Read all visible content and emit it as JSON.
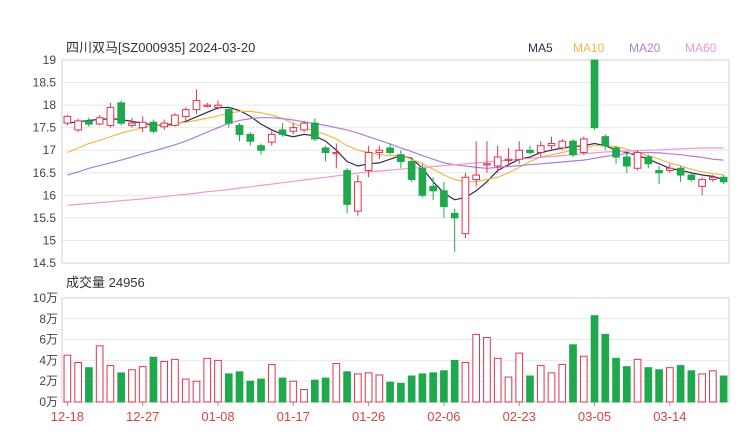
{
  "chart_data": [
    {
      "type": "candlestick",
      "title": "四川双马[SZ000935] 2024-03-20",
      "ylim": [
        14.5,
        19
      ],
      "y_ticks": [
        "19",
        "18.5",
        "18",
        "17.5",
        "17",
        "16.5",
        "16",
        "15.5",
        "15",
        "14.5"
      ],
      "legend": [
        {
          "name": "MA5",
          "color": "#2e2a4d"
        },
        {
          "name": "MA10",
          "color": "#f2b64e"
        },
        {
          "name": "MA20",
          "color": "#b07ed8"
        },
        {
          "name": "MA60",
          "color": "#ee9ad0"
        }
      ],
      "candles": [
        [
          17.6,
          17.75,
          17.55,
          17.78
        ],
        [
          17.45,
          17.65,
          17.4,
          17.7
        ],
        [
          17.65,
          17.58,
          17.52,
          17.72
        ],
        [
          17.58,
          17.72,
          17.55,
          17.78
        ],
        [
          17.55,
          17.95,
          17.5,
          18.05
        ],
        [
          18.05,
          17.6,
          17.55,
          18.1
        ],
        [
          17.55,
          17.6,
          17.5,
          17.72
        ],
        [
          17.5,
          17.62,
          17.4,
          17.75
        ],
        [
          17.62,
          17.42,
          17.38,
          17.68
        ],
        [
          17.52,
          17.6,
          17.45,
          17.68
        ],
        [
          17.55,
          17.78,
          17.52,
          17.82
        ],
        [
          17.75,
          17.9,
          17.65,
          17.95
        ],
        [
          17.9,
          18.1,
          17.8,
          18.35
        ],
        [
          18.0,
          18.0,
          17.95,
          18.05
        ],
        [
          17.95,
          18.0,
          17.9,
          18.1
        ],
        [
          17.9,
          17.6,
          17.5,
          17.95
        ],
        [
          17.55,
          17.35,
          17.2,
          17.6
        ],
        [
          17.35,
          17.2,
          17.1,
          17.4
        ],
        [
          17.1,
          17.0,
          16.9,
          17.15
        ],
        [
          17.18,
          17.35,
          17.1,
          17.45
        ],
        [
          17.45,
          17.35,
          17.3,
          17.6
        ],
        [
          17.42,
          17.5,
          17.35,
          17.6
        ],
        [
          17.45,
          17.6,
          17.4,
          17.65
        ],
        [
          17.6,
          17.25,
          17.2,
          17.7
        ],
        [
          17.05,
          16.95,
          16.75,
          17.1
        ],
        [
          16.95,
          16.95,
          16.6,
          17.15
        ],
        [
          16.55,
          15.8,
          15.6,
          16.6
        ],
        [
          15.65,
          16.3,
          15.55,
          16.45
        ],
        [
          16.55,
          16.95,
          16.4,
          17.1
        ],
        [
          16.95,
          17.0,
          16.8,
          17.1
        ],
        [
          17.05,
          16.95,
          16.9,
          17.15
        ],
        [
          16.9,
          16.75,
          16.6,
          17.0
        ],
        [
          16.75,
          16.35,
          16.3,
          16.85
        ],
        [
          16.6,
          16.0,
          15.95,
          16.7
        ],
        [
          16.2,
          16.1,
          15.9,
          16.4
        ],
        [
          16.1,
          15.75,
          15.5,
          16.3
        ],
        [
          15.6,
          15.5,
          14.75,
          15.7
        ],
        [
          15.15,
          16.4,
          15.05,
          16.5
        ],
        [
          16.35,
          16.45,
          16.2,
          17.2
        ],
        [
          16.7,
          16.7,
          16.5,
          17.2
        ],
        [
          16.65,
          16.85,
          16.5,
          17.1
        ],
        [
          16.8,
          16.8,
          16.65,
          17.05
        ],
        [
          16.8,
          17.0,
          16.7,
          17.2
        ],
        [
          17.0,
          16.95,
          16.9,
          17.1
        ],
        [
          16.95,
          17.1,
          16.85,
          17.2
        ],
        [
          17.1,
          17.15,
          17.0,
          17.3
        ],
        [
          17.05,
          17.2,
          17.0,
          17.25
        ],
        [
          17.2,
          16.9,
          16.85,
          17.25
        ],
        [
          16.95,
          17.25,
          16.9,
          17.3
        ],
        [
          19.0,
          17.5,
          17.45,
          19.0
        ],
        [
          17.3,
          17.1,
          17.0,
          17.35
        ],
        [
          17.05,
          16.85,
          16.7,
          17.1
        ],
        [
          16.85,
          16.65,
          16.5,
          16.95
        ],
        [
          16.6,
          16.95,
          16.55,
          17.0
        ],
        [
          16.85,
          16.7,
          16.6,
          16.9
        ],
        [
          16.55,
          16.5,
          16.25,
          16.65
        ],
        [
          16.55,
          16.6,
          16.5,
          16.7
        ],
        [
          16.6,
          16.45,
          16.3,
          16.65
        ],
        [
          16.45,
          16.35,
          16.3,
          16.5
        ],
        [
          16.2,
          16.35,
          16.0,
          16.4
        ],
        [
          16.35,
          16.4,
          16.3,
          16.45
        ],
        [
          16.4,
          16.3,
          16.25,
          16.45
        ]
      ],
      "ma": {
        "MA5": [
          17.6,
          17.63,
          17.66,
          17.68,
          17.7,
          17.68,
          17.64,
          17.6,
          17.56,
          17.55,
          17.58,
          17.64,
          17.74,
          17.84,
          17.94,
          17.95,
          17.88,
          17.75,
          17.58,
          17.45,
          17.35,
          17.3,
          17.35,
          17.32,
          17.2,
          17.0,
          16.75,
          16.65,
          16.7,
          16.72,
          16.8,
          16.88,
          16.82,
          16.6,
          16.3,
          16.05,
          15.9,
          15.95,
          16.1,
          16.3,
          16.55,
          16.68,
          16.8,
          16.85,
          16.95,
          17.0,
          17.05,
          17.08,
          17.1,
          17.15,
          17.1,
          17.0,
          16.95,
          16.88,
          16.8,
          16.7,
          16.6,
          16.55,
          16.5,
          16.45,
          16.42,
          16.35
        ],
        "MA10": [
          16.95,
          17.05,
          17.15,
          17.22,
          17.3,
          17.38,
          17.44,
          17.5,
          17.55,
          17.58,
          17.6,
          17.62,
          17.66,
          17.71,
          17.76,
          17.82,
          17.86,
          17.86,
          17.83,
          17.78,
          17.7,
          17.6,
          17.5,
          17.42,
          17.35,
          17.25,
          17.1,
          17.0,
          16.95,
          16.9,
          16.88,
          16.88,
          16.8,
          16.7,
          16.58,
          16.45,
          16.35,
          16.3,
          16.3,
          16.35,
          16.4,
          16.5,
          16.62,
          16.75,
          16.85,
          16.9,
          16.95,
          17.0,
          17.05,
          17.1,
          17.1,
          17.08,
          17.02,
          16.95,
          16.88,
          16.8,
          16.72,
          16.65,
          16.58,
          16.52,
          16.48,
          16.45
        ],
        "MA20": [
          16.45,
          16.52,
          16.6,
          16.66,
          16.72,
          16.78,
          16.85,
          16.92,
          16.98,
          17.05,
          17.12,
          17.2,
          17.3,
          17.4,
          17.5,
          17.6,
          17.66,
          17.7,
          17.72,
          17.72,
          17.7,
          17.67,
          17.63,
          17.59,
          17.55,
          17.5,
          17.45,
          17.38,
          17.3,
          17.22,
          17.14,
          17.05,
          16.97,
          16.88,
          16.8,
          16.72,
          16.68,
          16.65,
          16.62,
          16.6,
          16.62,
          16.64,
          16.66,
          16.68,
          16.7,
          16.72,
          16.74,
          16.76,
          16.78,
          16.82,
          16.86,
          16.9,
          16.92,
          16.94,
          16.95,
          16.94,
          16.92,
          16.9,
          16.87,
          16.84,
          16.8,
          16.78
        ],
        "MA60": [
          15.78,
          15.8,
          15.82,
          15.84,
          15.86,
          15.88,
          15.9,
          15.92,
          15.95,
          15.97,
          16.0,
          16.02,
          16.05,
          16.08,
          16.1,
          16.13,
          16.16,
          16.19,
          16.22,
          16.25,
          16.28,
          16.31,
          16.34,
          16.37,
          16.4,
          16.43,
          16.46,
          16.49,
          16.52,
          16.54,
          16.56,
          16.58,
          16.6,
          16.62,
          16.64,
          16.66,
          16.68,
          16.7,
          16.72,
          16.74,
          16.76,
          16.78,
          16.8,
          16.82,
          16.84,
          16.86,
          16.88,
          16.9,
          16.92,
          16.94,
          16.96,
          16.97,
          16.98,
          16.99,
          17.0,
          17.01,
          17.02,
          17.03,
          17.04,
          17.05,
          17.05,
          17.05
        ]
      }
    },
    {
      "type": "bar",
      "title": "成交量 24956",
      "ylim": [
        0,
        10
      ],
      "y_ticks": [
        "10万",
        "8万",
        "6万",
        "4万",
        "2万",
        "0万"
      ],
      "unit": "万",
      "values": [
        4.5,
        3.8,
        3.3,
        5.4,
        3.5,
        2.8,
        3.1,
        3.4,
        4.3,
        3.9,
        4.1,
        2.2,
        2.0,
        4.2,
        4.0,
        2.7,
        2.9,
        2.0,
        2.2,
        3.6,
        2.3,
        2.0,
        1.2,
        2.1,
        2.3,
        3.7,
        2.9,
        2.7,
        2.8,
        2.6,
        1.9,
        1.8,
        2.5,
        2.7,
        2.8,
        3.0,
        4.0,
        3.8,
        6.5,
        6.2,
        4.2,
        2.4,
        4.7,
        2.5,
        3.5,
        2.8,
        3.6,
        5.5,
        4.4,
        8.3,
        6.5,
        4.2,
        3.4,
        4.1,
        3.3,
        3.1,
        3.3,
        3.5,
        3.0,
        2.7,
        3.0,
        2.5
      ],
      "x_ticks": [
        {
          "label": "12-18",
          "index": 0
        },
        {
          "label": "12-27",
          "index": 7
        },
        {
          "label": "01-08",
          "index": 14
        },
        {
          "label": "01-17",
          "index": 21
        },
        {
          "label": "01-26",
          "index": 28
        },
        {
          "label": "02-06",
          "index": 35
        },
        {
          "label": "02-23",
          "index": 42
        },
        {
          "label": "03-05",
          "index": 49
        },
        {
          "label": "03-14",
          "index": 56
        }
      ]
    }
  ],
  "colors": {
    "up": "#e0344e",
    "down": "#1fa84d",
    "grid": "#e8e8e8",
    "axis_text": "#444444",
    "tick_text": "#d64545",
    "header_text": "#333333"
  }
}
